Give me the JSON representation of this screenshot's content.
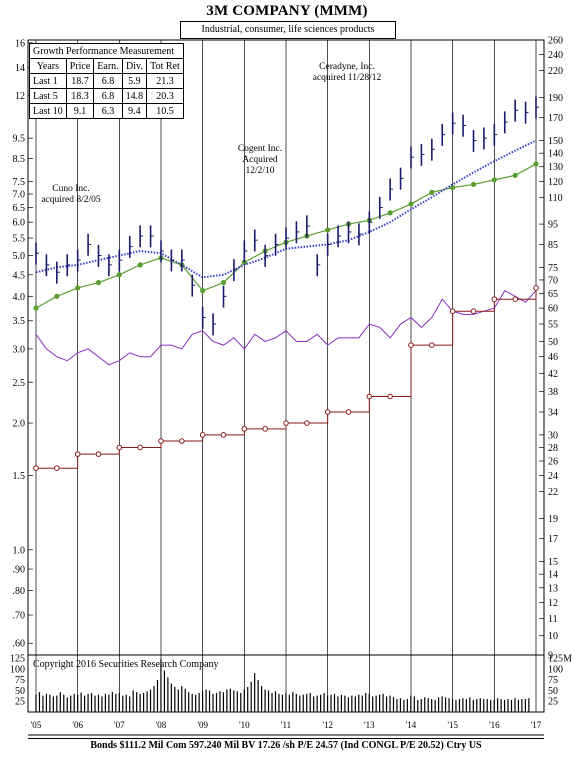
{
  "header": {
    "company": "3M COMPANY (MMM)",
    "industry": "Industrial, consumer, life sciences products"
  },
  "growth_table": {
    "title": "Growth Performance Measurement",
    "columns": [
      "Years",
      "Price",
      "Earn.",
      "Div.",
      "Tot Ret"
    ],
    "rows": [
      [
        "Last 1",
        "18.7",
        "6.8",
        "5.9",
        "21.3"
      ],
      [
        "Last 5",
        "18.3",
        "6.8",
        "14.8",
        "20.3"
      ],
      [
        "Last 10",
        "9.1",
        "6.3",
        "9.4",
        "10.5"
      ]
    ]
  },
  "annotations": {
    "cuno_line1": "Cuno Inc.",
    "cuno_line2": "acquired 8/2/05",
    "cogent_line1": "Cogent Inc.",
    "cogent_line2": "Acquired",
    "cogent_line3": "12/2/10",
    "ceradyne_line1": "Ceradyne, Inc.",
    "ceradyne_line2": "acquired 11/28/12"
  },
  "copyright": "Copyright 2016 Securities Research Company",
  "footer": "Bonds  $111.2 Mil Com 597.240 Mil BV 17.26 /sh  P/E 24.57 (Ind CONGL P/E 20.52) Ctry US",
  "colors": {
    "price_bars": "#1a1a6e",
    "moving_average": "#3a3fcf",
    "earnings": "#5a9e2f",
    "dividends": "#8b1a1a",
    "relative_strength": "#8a2fbf",
    "grid": "#000000"
  },
  "chart_data": {
    "type": "line",
    "title": "3M COMPANY (MMM)",
    "x_axis": {
      "tick_labels": [
        "'05",
        "'06",
        "'07",
        "'08",
        "'09",
        "'10",
        "'11",
        "'12",
        "'13",
        "'14",
        "'15",
        "'16",
        "'17"
      ],
      "range": [
        2005,
        2017
      ]
    },
    "left_axis": {
      "scale": "log",
      "tick_labels": [
        "16",
        "14",
        "12",
        "9.5",
        "8.5",
        "7.5",
        "7.0",
        "6.5",
        "6.0",
        "5.5",
        "5.0",
        "4.5",
        "4.0",
        "3.5",
        "3.0",
        "2.5",
        "2.0",
        "1.5",
        "1.0",
        ".90",
        ".80",
        ".70",
        ".60"
      ]
    },
    "right_axis": {
      "scale": "log",
      "tick_labels": [
        "260",
        "240",
        "220",
        "190",
        "170",
        "150",
        "140",
        "130",
        "120",
        "110",
        "95",
        "85",
        "75",
        "70",
        "65",
        "60",
        "55",
        "50",
        "46",
        "42",
        "38",
        "34",
        "30",
        "28",
        "26",
        "24",
        "22",
        "19",
        "17",
        "15",
        "14",
        "13",
        "12",
        "11",
        "10",
        "9"
      ],
      "range": [
        9,
        260
      ]
    },
    "volume_axis": {
      "left_labels": [
        "125",
        "100",
        "75",
        "50",
        "25"
      ],
      "right_labels": [
        "125M",
        "100",
        "75",
        "50",
        "25"
      ],
      "range": [
        0,
        125
      ]
    },
    "series": [
      {
        "key": "price_close",
        "x": [
          2005.0,
          2005.25,
          2005.5,
          2005.75,
          2006.0,
          2006.25,
          2006.5,
          2006.75,
          2007.0,
          2007.25,
          2007.5,
          2007.75,
          2008.0,
          2008.25,
          2008.5,
          2008.75,
          2009.0,
          2009.25,
          2009.5,
          2009.75,
          2010.0,
          2010.25,
          2010.5,
          2010.75,
          2011.0,
          2011.25,
          2011.5,
          2011.75,
          2012.0,
          2012.25,
          2012.5,
          2012.75,
          2013.0,
          2013.25,
          2013.5,
          2013.75,
          2014.0,
          2014.25,
          2014.5,
          2014.75,
          2015.0,
          2015.25,
          2015.5,
          2015.75,
          2016.0,
          2016.25,
          2016.5,
          2016.75,
          2017.0
        ],
        "values": [
          81,
          76,
          73,
          76,
          78,
          85,
          80,
          76,
          78,
          84,
          89,
          89,
          82,
          78,
          78,
          68,
          57,
          55,
          64,
          74,
          82,
          87,
          80,
          85,
          88,
          91,
          94,
          76,
          85,
          89,
          91,
          90,
          96,
          104,
          115,
          122,
          137,
          139,
          143,
          155,
          165,
          163,
          150,
          152,
          155,
          166,
          177,
          175,
          180
        ]
      },
      {
        "key": "moving_average",
        "x": [
          2005.0,
          2005.5,
          2006.0,
          2006.5,
          2007.0,
          2007.5,
          2008.0,
          2008.5,
          2009.0,
          2009.5,
          2010.0,
          2010.5,
          2011.0,
          2011.5,
          2012.0,
          2012.5,
          2013.0,
          2013.5,
          2014.0,
          2014.5,
          2015.0,
          2015.5,
          2016.0,
          2016.5,
          2017.0
        ],
        "values": [
          73,
          75,
          76,
          78,
          80,
          82,
          81,
          76,
          71,
          72,
          76,
          79,
          83,
          84,
          85,
          87,
          91,
          96,
          103,
          110,
          118,
          126,
          134,
          142,
          150
        ]
      },
      {
        "key": "earnings",
        "x": [
          2005.0,
          2005.5,
          2006.0,
          2006.5,
          2007.0,
          2007.5,
          2008.0,
          2008.5,
          2009.0,
          2009.5,
          2010.0,
          2010.5,
          2011.0,
          2011.5,
          2012.0,
          2012.5,
          2013.0,
          2013.5,
          2014.0,
          2014.5,
          2015.0,
          2015.5,
          2016.0,
          2016.5,
          2017.0
        ],
        "values": [
          60,
          64,
          67,
          69,
          72,
          76,
          79,
          76,
          66,
          69,
          77,
          82,
          86,
          89,
          92,
          95,
          97,
          101,
          106,
          113,
          116,
          118,
          121,
          124,
          132
        ]
      },
      {
        "key": "dividends",
        "x": [
          2005.0,
          2005.5,
          2006.0,
          2006.5,
          2007.0,
          2007.5,
          2008.0,
          2008.5,
          2009.0,
          2009.5,
          2010.0,
          2010.5,
          2011.0,
          2011.5,
          2012.0,
          2012.5,
          2013.0,
          2013.5,
          2014.0,
          2014.5,
          2015.0,
          2015.5,
          2016.0,
          2016.5,
          2017.0
        ],
        "values": [
          25,
          25,
          27,
          27,
          28,
          28,
          29,
          29,
          30,
          30,
          31,
          31,
          32,
          32,
          34,
          34,
          37,
          37,
          49,
          49,
          59,
          59,
          63,
          63,
          67
        ]
      },
      {
        "key": "relative_strength",
        "x": [
          2005.0,
          2005.25,
          2005.5,
          2005.75,
          2006.0,
          2006.25,
          2006.5,
          2006.75,
          2007.0,
          2007.25,
          2007.5,
          2007.75,
          2008.0,
          2008.25,
          2008.5,
          2008.75,
          2009.0,
          2009.25,
          2009.5,
          2009.75,
          2010.0,
          2010.25,
          2010.5,
          2010.75,
          2011.0,
          2011.25,
          2011.5,
          2011.75,
          2012.0,
          2012.25,
          2012.5,
          2012.75,
          2013.0,
          2013.25,
          2013.5,
          2013.75,
          2014.0,
          2014.25,
          2014.5,
          2014.75,
          2015.0,
          2015.25,
          2015.5,
          2015.75,
          2016.0,
          2016.25,
          2016.5,
          2016.75,
          2017.0
        ],
        "values": [
          52,
          48,
          46,
          45,
          47,
          48,
          46,
          44,
          45,
          47,
          46,
          46,
          49,
          49,
          48,
          52,
          53,
          50,
          49,
          51,
          48,
          52,
          50,
          51,
          53,
          50,
          50,
          52,
          49,
          51,
          51,
          51,
          55,
          54,
          51,
          55,
          57,
          54,
          57,
          63,
          59,
          58,
          58,
          59,
          60,
          66,
          64,
          62,
          66
        ]
      }
    ],
    "volume": {
      "x_start": 2005.0,
      "x_step": 0.0833,
      "values": [
        40,
        46,
        38,
        42,
        40,
        36,
        38,
        46,
        40,
        34,
        38,
        42,
        40,
        45,
        38,
        42,
        44,
        38,
        40,
        36,
        42,
        40,
        46,
        42,
        44,
        38,
        40,
        36,
        50,
        46,
        42,
        44,
        48,
        52,
        60,
        74,
        122,
        96,
        80,
        66,
        58,
        52,
        60,
        54,
        46,
        42,
        40,
        44,
        48,
        52,
        50,
        42,
        44,
        48,
        46,
        52,
        54,
        50,
        48,
        44,
        52,
        58,
        70,
        90,
        74,
        60,
        52,
        50,
        44,
        48,
        42,
        40,
        44,
        40,
        46,
        42,
        38,
        40,
        42,
        44,
        36,
        38,
        40,
        44,
        38,
        40,
        42,
        36,
        40,
        38,
        34,
        38,
        36,
        40,
        38,
        44,
        42,
        36,
        38,
        40,
        42,
        36,
        38,
        34,
        30,
        32,
        28,
        30,
        38,
        36,
        28,
        30,
        34,
        32,
        30,
        28,
        34,
        36,
        34,
        32,
        30,
        28,
        30,
        32,
        30,
        34,
        28,
        30,
        32,
        30,
        30,
        28,
        28,
        32,
        30,
        28,
        30,
        28,
        32,
        28,
        30,
        30,
        32
      ]
    },
    "grid": true,
    "legend": "none"
  }
}
